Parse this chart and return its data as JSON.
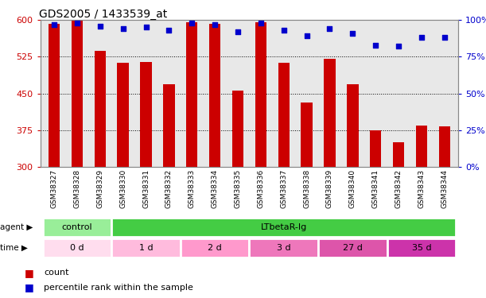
{
  "title": "GDS2005 / 1433539_at",
  "samples": [
    "GSM38327",
    "GSM38328",
    "GSM38329",
    "GSM38330",
    "GSM38331",
    "GSM38332",
    "GSM38333",
    "GSM38334",
    "GSM38335",
    "GSM38336",
    "GSM38337",
    "GSM38338",
    "GSM38339",
    "GSM38340",
    "GSM38341",
    "GSM38342",
    "GSM38343",
    "GSM38344"
  ],
  "counts": [
    592,
    600,
    537,
    512,
    514,
    468,
    595,
    592,
    456,
    595,
    512,
    432,
    521,
    468,
    375,
    350,
    385,
    382
  ],
  "percentiles": [
    97,
    98,
    96,
    94,
    95,
    93,
    98,
    97,
    92,
    98,
    93,
    89,
    94,
    91,
    83,
    82,
    88,
    88
  ],
  "y_min": 300,
  "y_max": 600,
  "y_ticks": [
    300,
    375,
    450,
    525,
    600
  ],
  "right_y_ticks": [
    0,
    25,
    50,
    75,
    100
  ],
  "right_y_labels": [
    "0%",
    "25%",
    "50%",
    "75%",
    "100%"
  ],
  "bar_color": "#cc0000",
  "dot_color": "#0000cc",
  "bar_bottom": 300,
  "agent_groups": [
    {
      "label": "control",
      "start": 0,
      "end": 3,
      "color": "#99ee99"
    },
    {
      "label": "LTbetaR-Ig",
      "start": 3,
      "end": 18,
      "color": "#44cc44"
    }
  ],
  "time_groups": [
    {
      "label": "0 d",
      "start": 0,
      "end": 3,
      "color": "#ffddee"
    },
    {
      "label": "1 d",
      "start": 3,
      "end": 6,
      "color": "#ffbbdd"
    },
    {
      "label": "2 d",
      "start": 6,
      "end": 9,
      "color": "#ff99cc"
    },
    {
      "label": "3 d",
      "start": 9,
      "end": 12,
      "color": "#ee77bb"
    },
    {
      "label": "27 d",
      "start": 12,
      "end": 15,
      "color": "#dd55aa"
    },
    {
      "label": "35 d",
      "start": 15,
      "end": 18,
      "color": "#cc33aa"
    }
  ],
  "xlabel_fontsize": 6.5,
  "title_fontsize": 10,
  "tick_color_left": "#cc0000",
  "tick_color_right": "#0000cc",
  "background_color": "#ffffff",
  "plot_bg": "#e8e8e8"
}
